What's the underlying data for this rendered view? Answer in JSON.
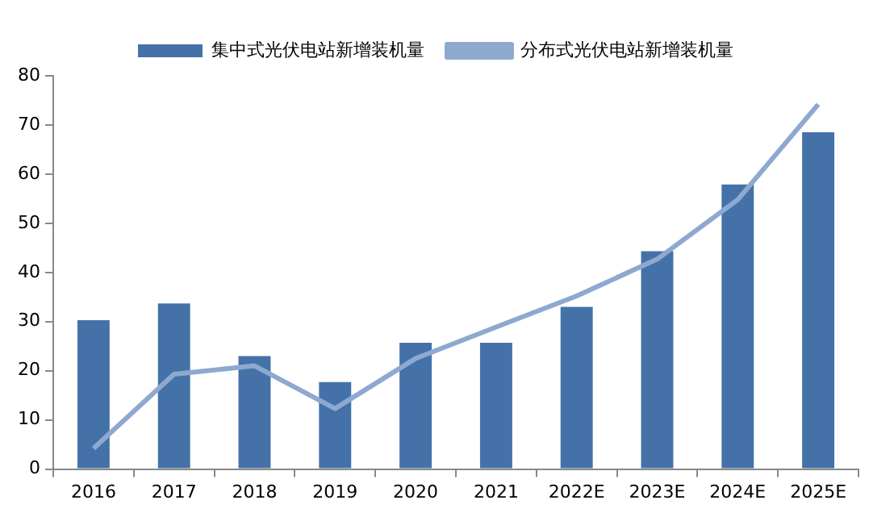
{
  "chart_data": {
    "type": "bar",
    "categories": [
      "2016",
      "2017",
      "2018",
      "2019",
      "2020",
      "2021",
      "2022E",
      "2023E",
      "2024E",
      "2025E"
    ],
    "series": [
      {
        "name": "集中式光伏电站新增装机量",
        "color": "#4472a8",
        "values": [
          30.3,
          33.7,
          23.0,
          17.7,
          25.7,
          25.7,
          33.0,
          44.3,
          57.9,
          68.5
        ]
      },
      {
        "name": "分布式光伏电站新增装机量",
        "color": "#8ea9d0",
        "type": "line",
        "values": [
          4.2,
          19.3,
          21.0,
          12.3,
          22.5,
          28.9,
          35.2,
          42.7,
          54.8,
          74.2
        ]
      }
    ],
    "ylim": [
      0,
      80
    ],
    "yticks": [
      0,
      10,
      20,
      30,
      40,
      50,
      60,
      70,
      80
    ],
    "grid": false,
    "legend": "top",
    "marker": "none"
  }
}
